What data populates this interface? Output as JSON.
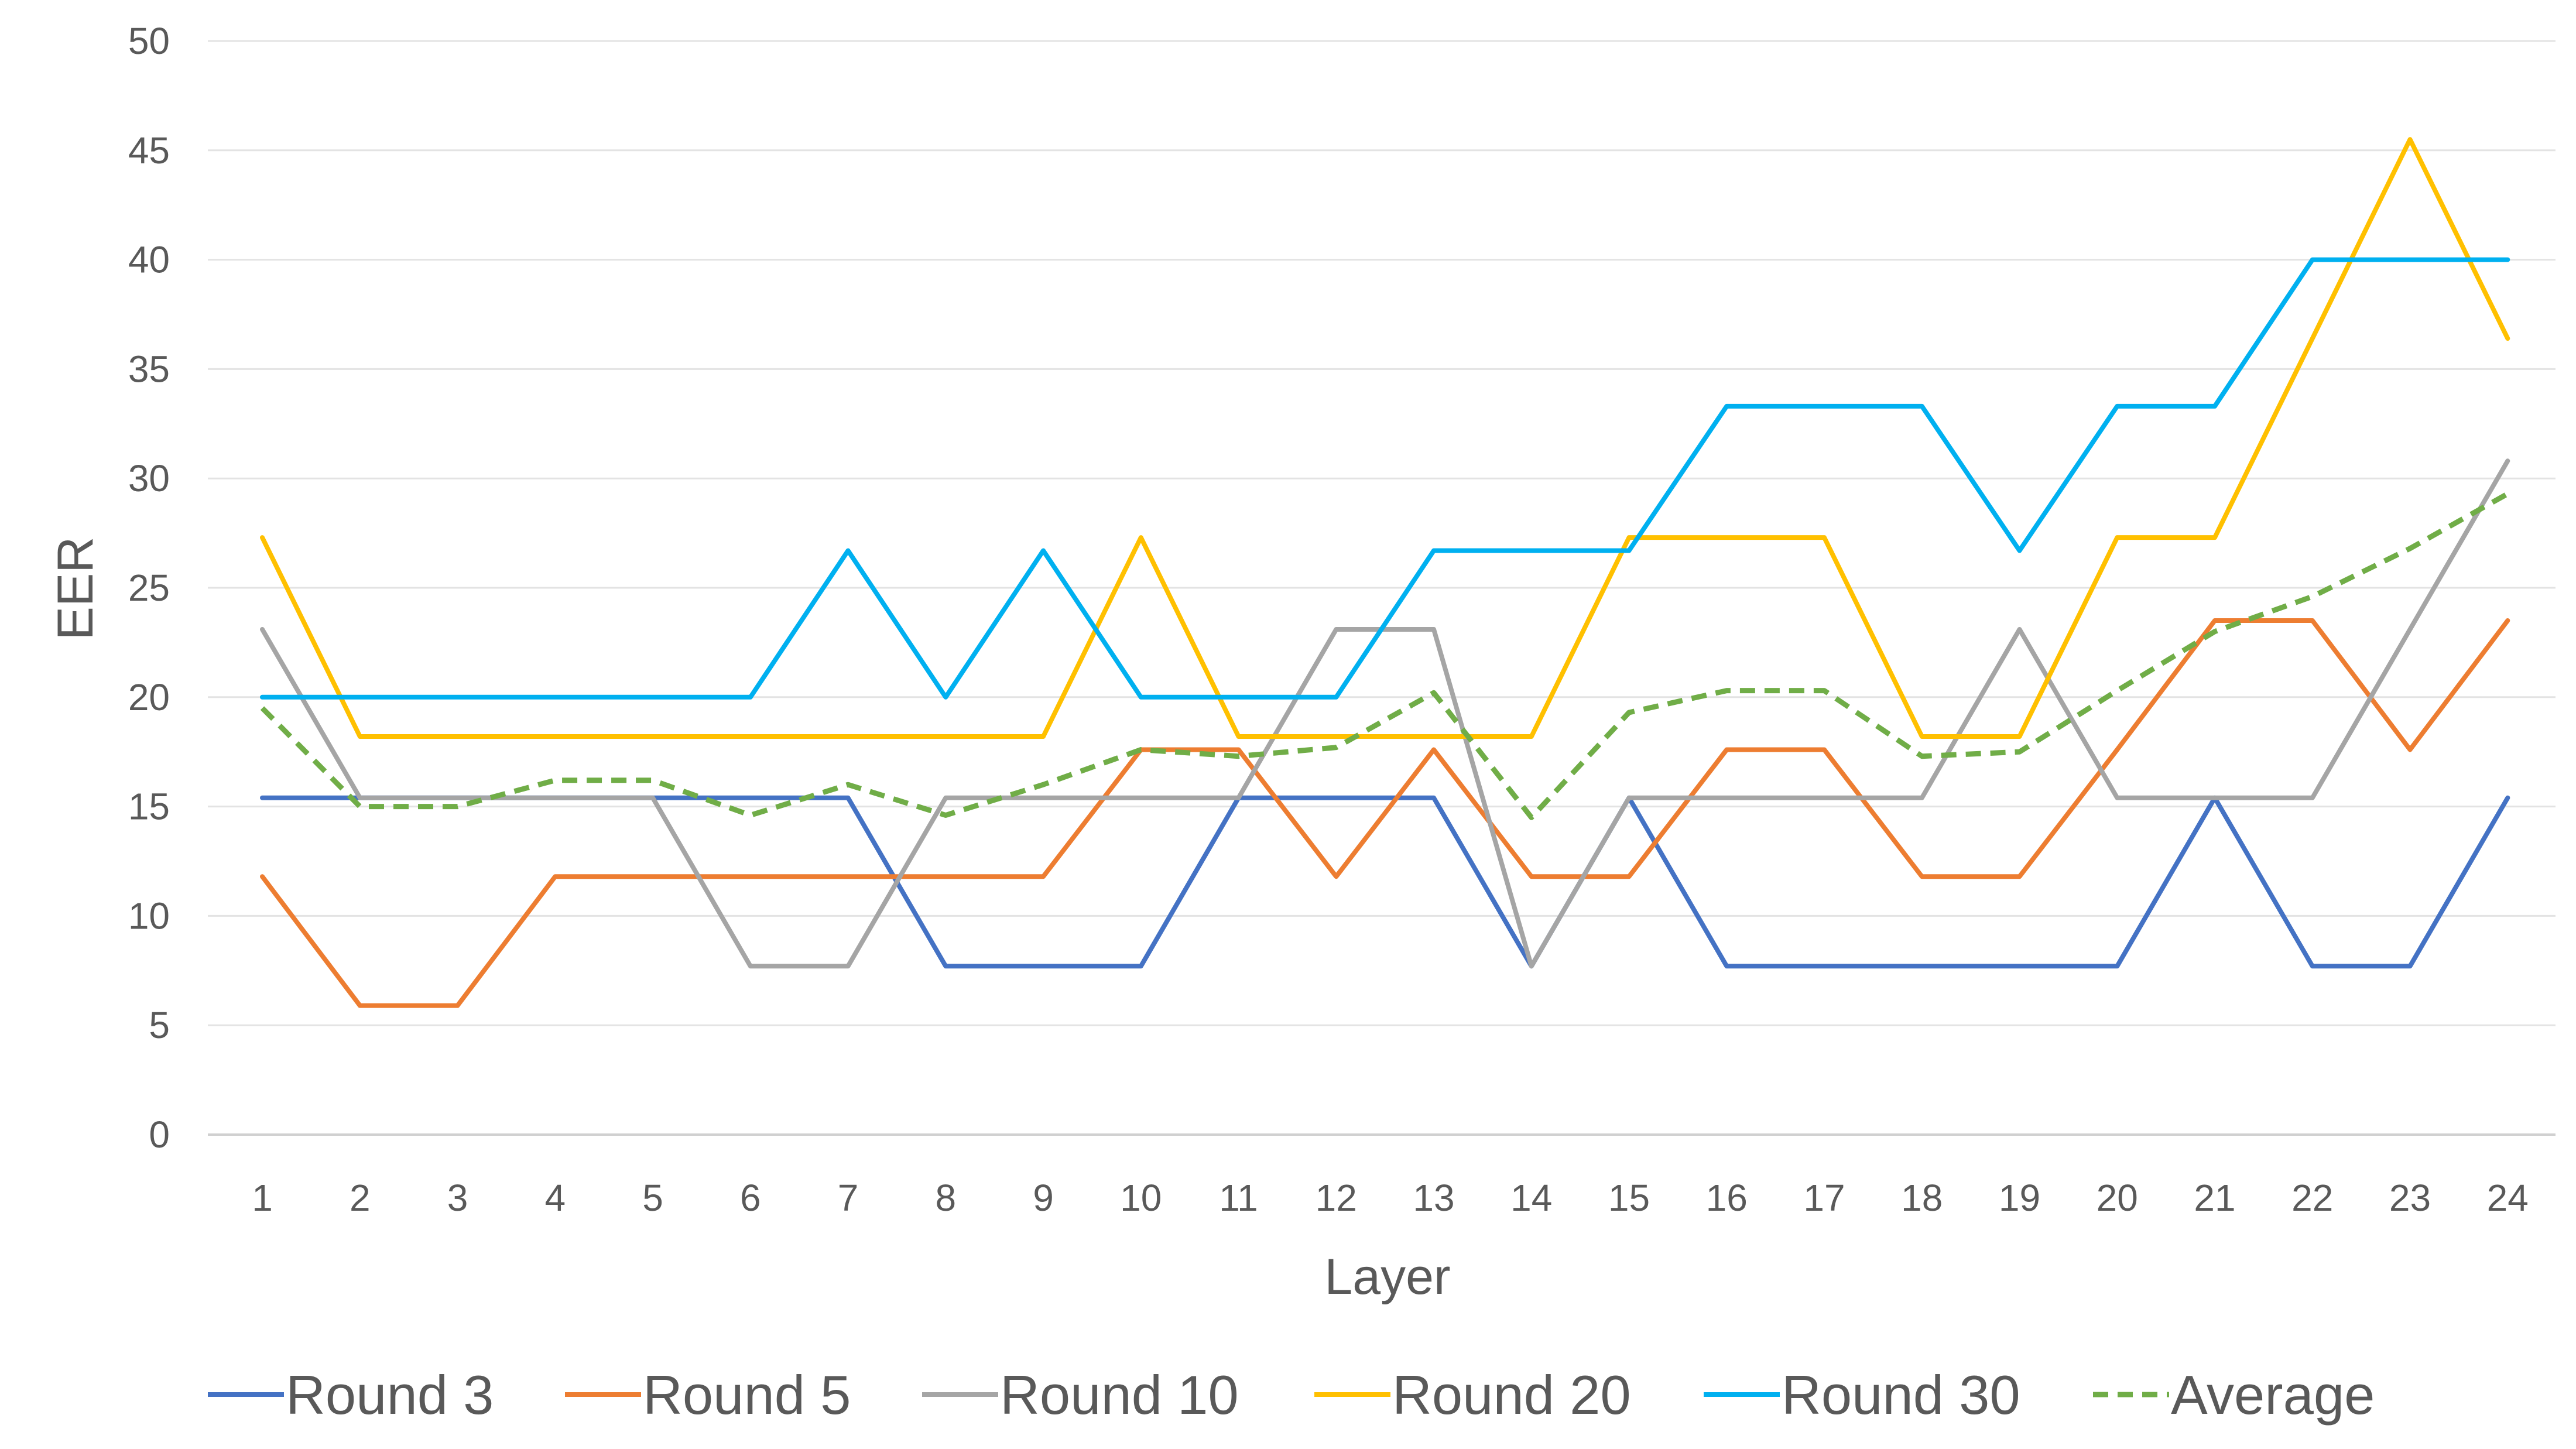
{
  "chart_data": {
    "type": "line",
    "xlabel": "Layer",
    "ylabel": "EER",
    "ylim": [
      0,
      50
    ],
    "y_ticks": [
      0,
      5,
      10,
      15,
      20,
      25,
      30,
      35,
      40,
      45,
      50
    ],
    "grid": "horizontal",
    "legend_position": "bottom",
    "categories": [
      "1",
      "2",
      "3",
      "4",
      "5",
      "6",
      "7",
      "8",
      "9",
      "10",
      "11",
      "12",
      "13",
      "14",
      "15",
      "16",
      "17",
      "18",
      "19",
      "20",
      "21",
      "22",
      "23",
      "24"
    ],
    "series": [
      {
        "name": "Round 3",
        "color": "#4472C4",
        "dashed": false,
        "values": [
          15.4,
          15.4,
          15.4,
          15.4,
          15.4,
          15.4,
          15.4,
          7.7,
          7.7,
          7.7,
          15.4,
          15.4,
          15.4,
          7.7,
          15.4,
          7.7,
          7.7,
          7.7,
          7.7,
          7.7,
          15.4,
          7.7,
          7.7,
          15.4
        ]
      },
      {
        "name": "Round 5",
        "color": "#ED7D31",
        "dashed": false,
        "values": [
          11.8,
          5.9,
          5.9,
          11.8,
          11.8,
          11.8,
          11.8,
          11.8,
          11.8,
          17.6,
          17.6,
          11.8,
          17.6,
          11.8,
          11.8,
          17.6,
          17.6,
          11.8,
          11.8,
          17.6,
          23.5,
          23.5,
          17.6,
          23.5
        ]
      },
      {
        "name": "Round 10",
        "color": "#A5A5A5",
        "dashed": false,
        "values": [
          23.1,
          15.4,
          15.4,
          15.4,
          15.4,
          7.7,
          7.7,
          15.4,
          15.4,
          15.4,
          15.4,
          23.1,
          23.1,
          7.7,
          15.4,
          15.4,
          15.4,
          15.4,
          23.1,
          15.4,
          15.4,
          15.4,
          23.1,
          30.8
        ]
      },
      {
        "name": "Round 20",
        "color": "#FFC000",
        "dashed": false,
        "values": [
          27.3,
          18.2,
          18.2,
          18.2,
          18.2,
          18.2,
          18.2,
          18.2,
          18.2,
          27.3,
          18.2,
          18.2,
          18.2,
          18.2,
          27.3,
          27.3,
          27.3,
          18.2,
          18.2,
          27.3,
          27.3,
          36.4,
          45.5,
          36.4
        ]
      },
      {
        "name": "Round 30",
        "color": "#00B0F0",
        "dashed": false,
        "values": [
          20,
          20,
          20,
          20,
          20,
          20,
          26.7,
          20,
          26.7,
          20,
          20,
          20,
          26.7,
          26.7,
          26.7,
          33.3,
          33.3,
          33.3,
          26.7,
          33.3,
          33.3,
          40,
          40,
          40
        ]
      },
      {
        "name": "Average",
        "color": "#70AD47",
        "dashed": true,
        "values": [
          19.5,
          15,
          15,
          16.2,
          16.2,
          14.6,
          16,
          14.6,
          16,
          17.6,
          17.3,
          17.7,
          20.2,
          14.5,
          19.3,
          20.3,
          20.3,
          17.3,
          17.5,
          20.3,
          23,
          24.6,
          26.8,
          29.3
        ]
      }
    ]
  }
}
